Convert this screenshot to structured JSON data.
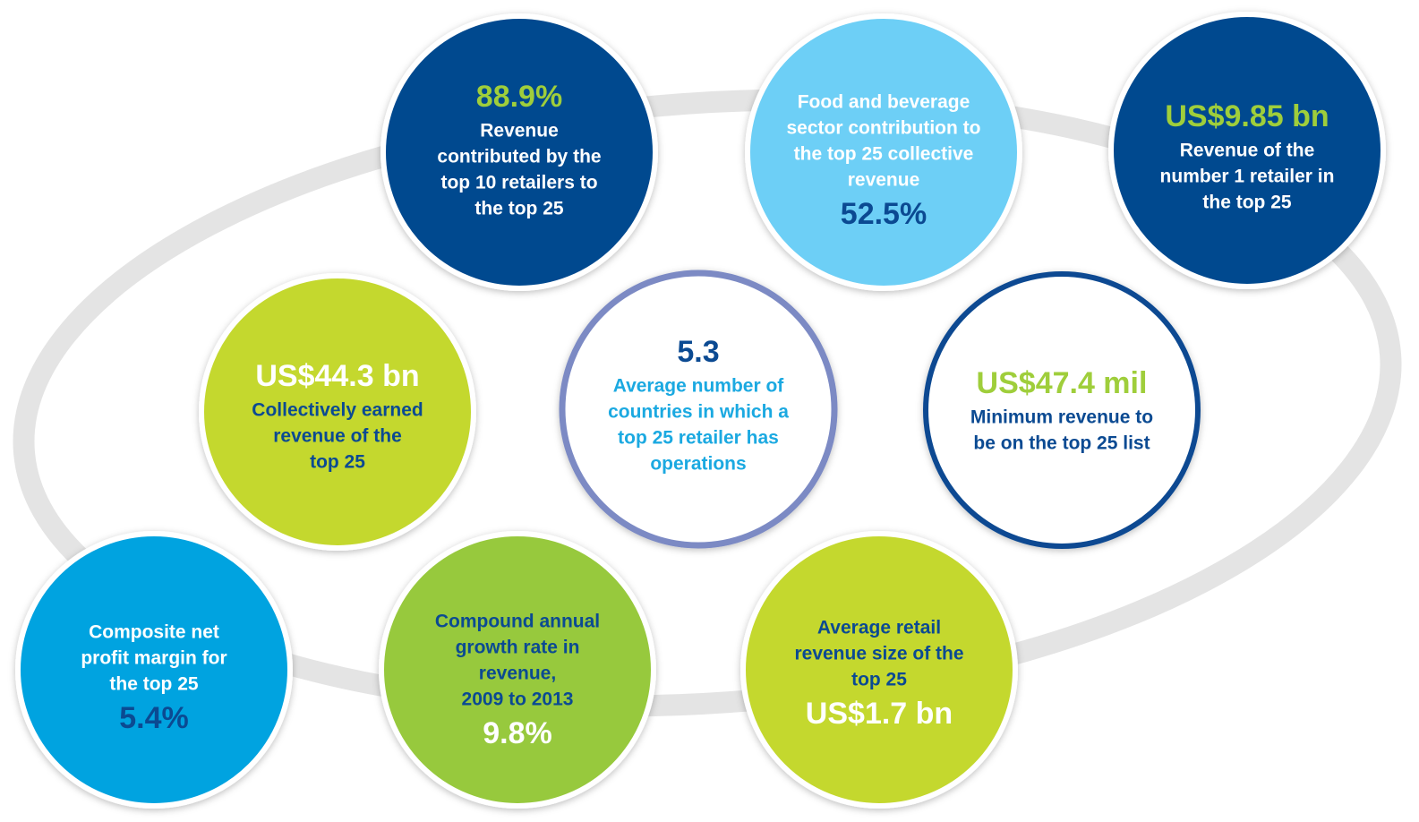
{
  "stats": [
    {
      "value": "88.9%",
      "label_lines": [
        "Revenue",
        "contributed by the",
        "top 10 retailers to",
        "the top 25"
      ]
    },
    {
      "value": "52.5%",
      "label_lines": [
        "Food and beverage",
        "sector contribution to",
        "the top 25 collective",
        "revenue"
      ]
    },
    {
      "value": "US$9.85 bn",
      "label_lines": [
        "Revenue of the",
        "number 1 retailer in",
        "the top 25"
      ]
    },
    {
      "value": "US$44.3 bn",
      "label_lines": [
        "Collectively earned",
        "revenue of the",
        "top 25"
      ]
    },
    {
      "value": "5.3",
      "label_lines": [
        "Average number of",
        "countries in which a",
        "top 25 retailer has",
        "operations"
      ]
    },
    {
      "value": "US$47.4 mil",
      "label_lines": [
        "Minimum revenue to",
        "be on the top 25 list"
      ]
    },
    {
      "value": "5.4%",
      "label_lines": [
        "Composite net",
        "profit margin for",
        "the top 25"
      ]
    },
    {
      "value": "9.8%",
      "label_lines": [
        "Compound annual",
        "growth rate in",
        "revenue,",
        "2009 to 2013"
      ]
    },
    {
      "value": "US$1.7 bn",
      "label_lines": [
        "Average retail",
        "revenue size of the",
        "top 25"
      ]
    }
  ]
}
